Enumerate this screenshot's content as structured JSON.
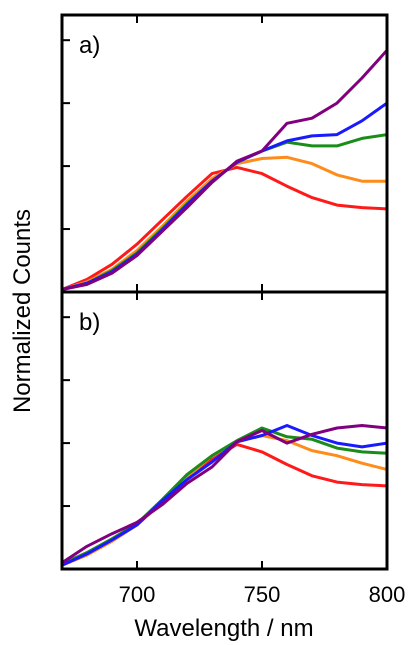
{
  "chart_data": [
    {
      "type": "line",
      "panel_label": "a)",
      "xlabel": "Wavelength / nm",
      "ylabel": "Normalized Counts",
      "xlim": [
        670,
        800
      ],
      "ylim": [
        0,
        2.2
      ],
      "x_ticks": [
        700,
        750,
        800
      ],
      "y_ticks": [
        0.5,
        1.0,
        1.5,
        2.0
      ],
      "y_tick_labels_shown": false,
      "grid": false,
      "series": [
        {
          "color": "#ff1a1a",
          "x": [
            670,
            680,
            690,
            700,
            710,
            720,
            730,
            740,
            750,
            760,
            770,
            780,
            790,
            800
          ],
          "values": [
            0.02,
            0.1,
            0.22,
            0.38,
            0.57,
            0.76,
            0.94,
            0.99,
            0.94,
            0.84,
            0.75,
            0.69,
            0.67,
            0.66
          ]
        },
        {
          "color": "#ff8c1a",
          "x": [
            670,
            680,
            690,
            700,
            710,
            720,
            730,
            740,
            750,
            760,
            770,
            780,
            790,
            800
          ],
          "values": [
            0.02,
            0.08,
            0.18,
            0.33,
            0.52,
            0.72,
            0.9,
            1.02,
            1.06,
            1.07,
            1.02,
            0.93,
            0.88,
            0.88
          ]
        },
        {
          "color": "#1a8c1a",
          "x": [
            670,
            680,
            690,
            700,
            710,
            720,
            730,
            740,
            750,
            760,
            770,
            780,
            790,
            800
          ],
          "values": [
            0.02,
            0.07,
            0.17,
            0.31,
            0.5,
            0.7,
            0.88,
            1.03,
            1.12,
            1.19,
            1.16,
            1.16,
            1.22,
            1.25
          ]
        },
        {
          "color": "#1a1aff",
          "x": [
            670,
            680,
            690,
            700,
            710,
            720,
            730,
            740,
            750,
            760,
            770,
            780,
            790,
            800
          ],
          "values": [
            0.02,
            0.07,
            0.16,
            0.3,
            0.49,
            0.69,
            0.88,
            1.03,
            1.12,
            1.2,
            1.24,
            1.25,
            1.36,
            1.5
          ]
        },
        {
          "color": "#800080",
          "x": [
            670,
            680,
            690,
            700,
            710,
            720,
            730,
            740,
            750,
            760,
            770,
            780,
            790,
            800
          ],
          "values": [
            0.02,
            0.06,
            0.15,
            0.29,
            0.48,
            0.67,
            0.87,
            1.04,
            1.12,
            1.34,
            1.38,
            1.5,
            1.7,
            1.92
          ]
        }
      ]
    },
    {
      "type": "line",
      "panel_label": "b)",
      "xlabel": "Wavelength / nm",
      "ylabel": "Normalized Counts",
      "xlim": [
        670,
        800
      ],
      "ylim": [
        0,
        2.2
      ],
      "x_ticks": [
        700,
        750,
        800
      ],
      "x_tick_labels": [
        "700",
        "750",
        "800"
      ],
      "y_ticks": [
        0.5,
        1.0,
        1.5,
        2.0
      ],
      "y_tick_labels_shown": false,
      "grid": false,
      "series": [
        {
          "color": "#ff1a1a",
          "x": [
            670,
            680,
            690,
            700,
            710,
            720,
            730,
            740,
            750,
            760,
            770,
            780,
            790,
            800
          ],
          "values": [
            0.04,
            0.13,
            0.23,
            0.35,
            0.53,
            0.72,
            0.87,
            0.99,
            0.93,
            0.83,
            0.74,
            0.69,
            0.67,
            0.66
          ]
        },
        {
          "color": "#ff8c1a",
          "x": [
            670,
            680,
            690,
            700,
            710,
            720,
            730,
            740,
            750,
            760,
            770,
            780,
            790,
            800
          ],
          "values": [
            0.03,
            0.11,
            0.22,
            0.35,
            0.54,
            0.73,
            0.9,
            1.01,
            1.06,
            1.02,
            0.94,
            0.9,
            0.84,
            0.79
          ]
        },
        {
          "color": "#1a8c1a",
          "x": [
            670,
            680,
            690,
            700,
            710,
            720,
            730,
            740,
            750,
            760,
            770,
            780,
            790,
            800
          ],
          "values": [
            0.04,
            0.13,
            0.24,
            0.36,
            0.55,
            0.75,
            0.9,
            1.02,
            1.12,
            1.05,
            1.03,
            0.96,
            0.93,
            0.92
          ]
        },
        {
          "color": "#1a1aff",
          "x": [
            670,
            680,
            690,
            700,
            710,
            720,
            730,
            740,
            750,
            760,
            770,
            780,
            790,
            800
          ],
          "values": [
            0.03,
            0.12,
            0.23,
            0.35,
            0.54,
            0.71,
            0.85,
            1.01,
            1.06,
            1.14,
            1.06,
            1.0,
            0.97,
            1.0
          ]
        },
        {
          "color": "#800080",
          "x": [
            670,
            680,
            690,
            700,
            710,
            720,
            730,
            740,
            750,
            760,
            770,
            780,
            790,
            800
          ],
          "values": [
            0.05,
            0.18,
            0.28,
            0.37,
            0.51,
            0.68,
            0.81,
            1.01,
            1.1,
            1.0,
            1.07,
            1.12,
            1.14,
            1.12
          ]
        }
      ]
    }
  ]
}
